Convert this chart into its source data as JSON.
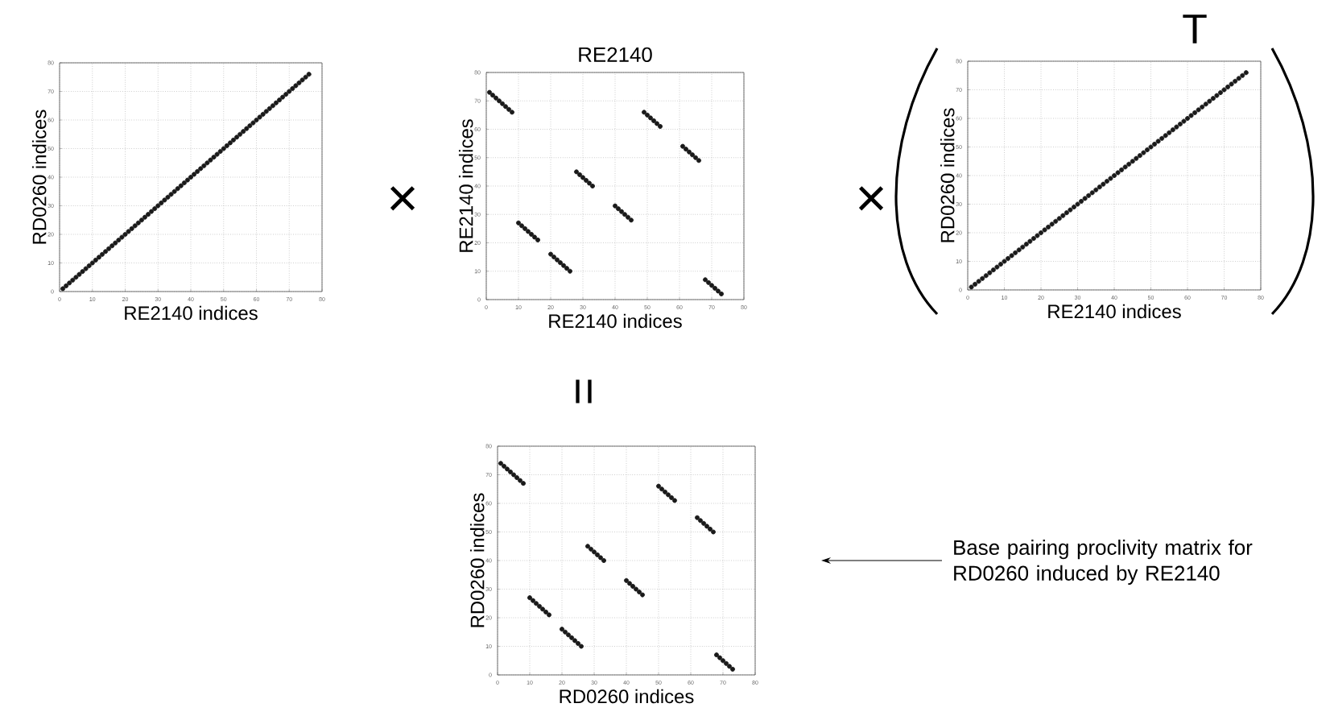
{
  "chart_data": [
    {
      "type": "scatter",
      "xlabel": "RE2140 indices",
      "ylabel": "RD0260 indices",
      "xlim": [
        0,
        80
      ],
      "ylim": [
        0,
        80
      ],
      "xticks": [
        0,
        10,
        20,
        30,
        40,
        50,
        60,
        70,
        80
      ],
      "yticks": [
        0,
        10,
        20,
        30,
        40,
        50,
        60,
        70,
        80
      ],
      "grid": true,
      "series": [
        {
          "color": "#1a1a1a",
          "x": [
            1,
            2,
            3,
            4,
            5,
            6,
            7,
            8,
            9,
            10,
            11,
            12,
            13,
            14,
            15,
            16,
            17,
            18,
            19,
            20,
            21,
            22,
            23,
            24,
            25,
            26,
            27,
            28,
            29,
            30,
            31,
            32,
            33,
            34,
            35,
            36,
            37,
            38,
            39,
            40,
            41,
            42,
            43,
            44,
            45,
            46,
            47,
            48,
            49,
            50,
            51,
            52,
            53,
            54,
            55,
            56,
            57,
            58,
            59,
            60,
            61,
            62,
            63,
            64,
            65,
            66,
            67,
            68,
            69,
            70,
            71,
            72,
            73,
            74,
            75,
            76
          ],
          "values": [
            1,
            2,
            3,
            4,
            5,
            6,
            7,
            8,
            9,
            10,
            11,
            12,
            13,
            14,
            15,
            16,
            17,
            18,
            19,
            20,
            21,
            22,
            23,
            24,
            25,
            26,
            27,
            28,
            29,
            30,
            31,
            32,
            33,
            34,
            35,
            36,
            37,
            38,
            39,
            40,
            41,
            42,
            43,
            44,
            45,
            46,
            47,
            48,
            49,
            50,
            51,
            52,
            53,
            54,
            55,
            56,
            57,
            58,
            59,
            60,
            61,
            62,
            63,
            64,
            65,
            66,
            67,
            68,
            69,
            70,
            71,
            72,
            73,
            74,
            75,
            76
          ]
        }
      ]
    },
    {
      "type": "scatter",
      "title": "RE2140",
      "xlabel": "RE2140 indices",
      "ylabel": "RE2140 indices",
      "xlim": [
        0,
        80
      ],
      "ylim": [
        0,
        80
      ],
      "xticks": [
        0,
        10,
        20,
        30,
        40,
        50,
        60,
        70,
        80
      ],
      "yticks": [
        0,
        10,
        20,
        30,
        40,
        50,
        60,
        70,
        80
      ],
      "grid": true,
      "series": [
        {
          "color": "#1a1a1a",
          "x": [
            1,
            2,
            3,
            4,
            5,
            6,
            7,
            8,
            10,
            11,
            12,
            13,
            14,
            15,
            16,
            20,
            21,
            22,
            23,
            24,
            25,
            26,
            28,
            29,
            30,
            31,
            32,
            33,
            40,
            41,
            42,
            43,
            44,
            45,
            49,
            50,
            51,
            52,
            53,
            54,
            61,
            62,
            63,
            64,
            65,
            66,
            68,
            69,
            70,
            71,
            72,
            73
          ],
          "values": [
            73,
            72,
            71,
            70,
            69,
            68,
            67,
            66,
            27,
            26,
            25,
            24,
            23,
            22,
            21,
            16,
            15,
            14,
            13,
            12,
            11,
            10,
            45,
            44,
            43,
            42,
            41,
            40,
            33,
            32,
            31,
            30,
            29,
            28,
            66,
            65,
            64,
            63,
            62,
            61,
            54,
            53,
            52,
            51,
            50,
            49,
            7,
            6,
            5,
            4,
            3,
            2
          ]
        }
      ]
    },
    {
      "type": "scatter",
      "xlabel": "RE2140 indices",
      "ylabel": "RD0260 indices",
      "xlim": [
        0,
        80
      ],
      "ylim": [
        0,
        80
      ],
      "xticks": [
        0,
        10,
        20,
        30,
        40,
        50,
        60,
        70,
        80
      ],
      "yticks": [
        0,
        10,
        20,
        30,
        40,
        50,
        60,
        70,
        80
      ],
      "grid": true,
      "series": [
        {
          "color": "#1a1a1a",
          "x": [
            1,
            2,
            3,
            4,
            5,
            6,
            7,
            8,
            9,
            10,
            11,
            12,
            13,
            14,
            15,
            16,
            17,
            18,
            19,
            20,
            21,
            22,
            23,
            24,
            25,
            26,
            27,
            28,
            29,
            30,
            31,
            32,
            33,
            34,
            35,
            36,
            37,
            38,
            39,
            40,
            41,
            42,
            43,
            44,
            45,
            46,
            47,
            48,
            49,
            50,
            51,
            52,
            53,
            54,
            55,
            56,
            57,
            58,
            59,
            60,
            61,
            62,
            63,
            64,
            65,
            66,
            67,
            68,
            69,
            70,
            71,
            72,
            73,
            74,
            75,
            76
          ],
          "values": [
            1,
            2,
            3,
            4,
            5,
            6,
            7,
            8,
            9,
            10,
            11,
            12,
            13,
            14,
            15,
            16,
            17,
            18,
            19,
            20,
            21,
            22,
            23,
            24,
            25,
            26,
            27,
            28,
            29,
            30,
            31,
            32,
            33,
            34,
            35,
            36,
            37,
            38,
            39,
            40,
            41,
            42,
            43,
            44,
            45,
            46,
            47,
            48,
            49,
            50,
            51,
            52,
            53,
            54,
            55,
            56,
            57,
            58,
            59,
            60,
            61,
            62,
            63,
            64,
            65,
            66,
            67,
            68,
            69,
            70,
            71,
            72,
            73,
            74,
            75,
            76
          ]
        }
      ]
    },
    {
      "type": "scatter",
      "xlabel": "RD0260 indices",
      "ylabel": "RD0260 indices",
      "xlim": [
        0,
        80
      ],
      "ylim": [
        0,
        80
      ],
      "xticks": [
        0,
        10,
        20,
        30,
        40,
        50,
        60,
        70,
        80
      ],
      "yticks": [
        0,
        10,
        20,
        30,
        40,
        50,
        60,
        70,
        80
      ],
      "grid": true,
      "annotations": [
        "Base pairing proclivity matrix for RD0260 induced by RE2140"
      ],
      "series": [
        {
          "color": "#1a1a1a",
          "x": [
            1,
            2,
            3,
            4,
            5,
            6,
            7,
            8,
            10,
            11,
            12,
            13,
            14,
            15,
            16,
            20,
            21,
            22,
            23,
            24,
            25,
            26,
            28,
            29,
            30,
            31,
            32,
            33,
            40,
            41,
            42,
            43,
            44,
            45,
            50,
            51,
            52,
            53,
            54,
            55,
            62,
            63,
            64,
            65,
            66,
            67,
            68,
            69,
            70,
            71,
            72,
            73
          ],
          "values": [
            74,
            73,
            72,
            71,
            70,
            69,
            68,
            67,
            27,
            26,
            25,
            24,
            23,
            22,
            21,
            16,
            15,
            14,
            13,
            12,
            11,
            10,
            45,
            44,
            43,
            42,
            41,
            40,
            33,
            32,
            31,
            30,
            29,
            28,
            66,
            65,
            64,
            63,
            62,
            61,
            55,
            54,
            53,
            52,
            51,
            50,
            7,
            6,
            5,
            4,
            3,
            2
          ]
        }
      ]
    },
    {
      "type": "other",
      "annotations": [
        "×",
        "×",
        "T",
        "="
      ]
    }
  ]
}
